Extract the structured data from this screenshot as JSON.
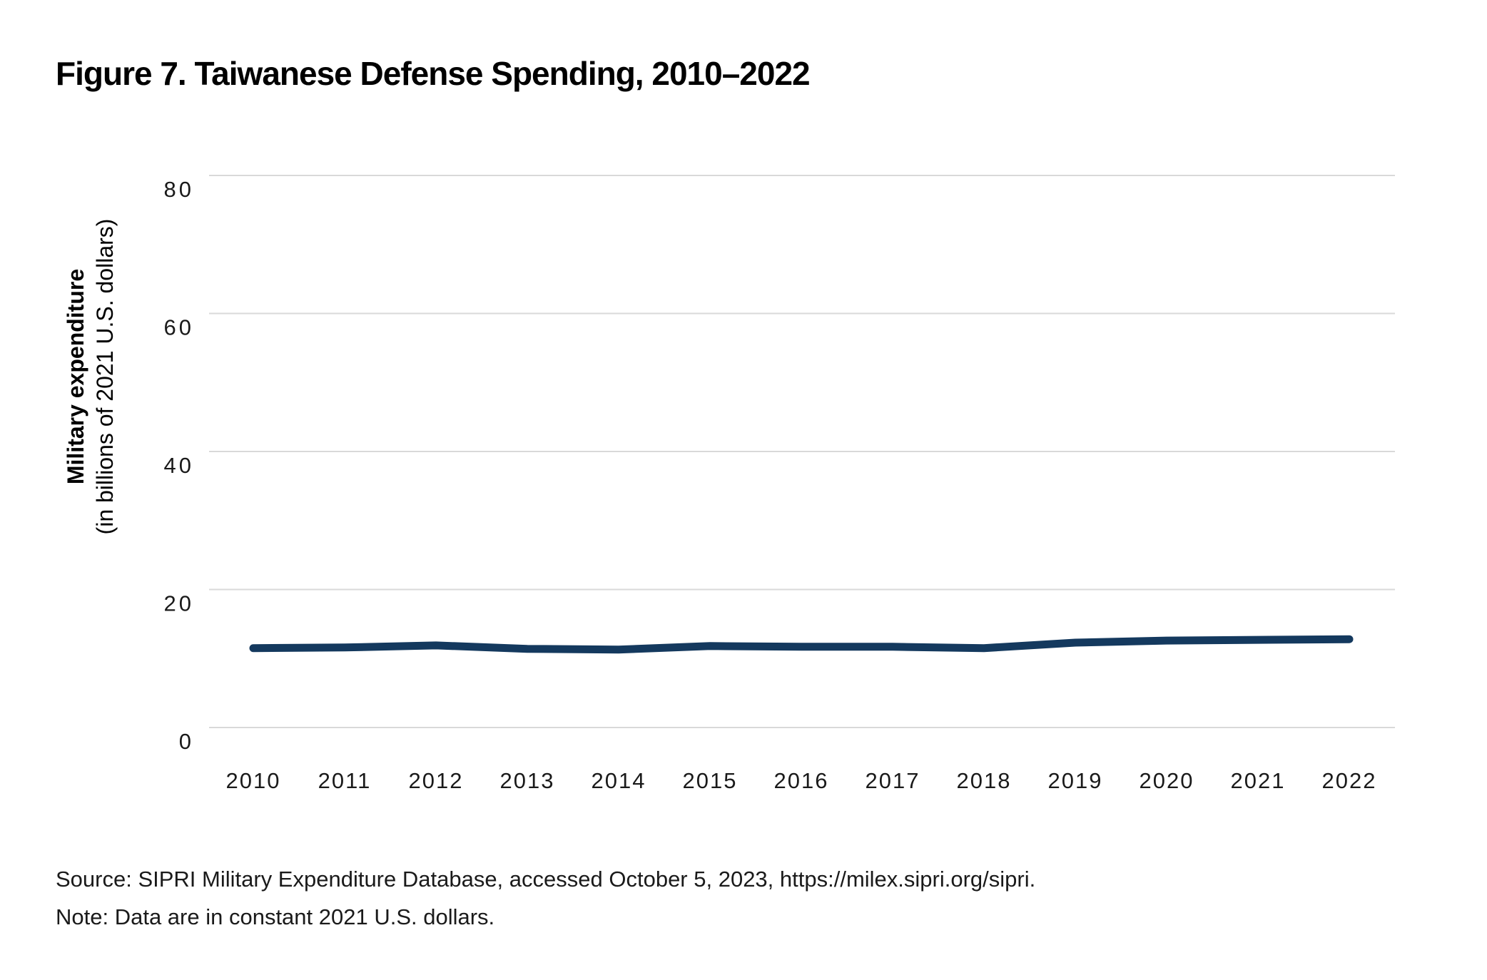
{
  "title": "Figure 7. Taiwanese Defense Spending, 2010–2022",
  "source": "Source: SIPRI Military Expenditure Database, accessed October 5, 2023, https://milex.sipri.org/sipri.",
  "note": "Note: Data are in constant 2021 U.S. dollars.",
  "chart_data": {
    "type": "line",
    "title": "Figure 7. Taiwanese Defense Spending, 2010–2022",
    "x": [
      2010,
      2011,
      2012,
      2013,
      2014,
      2015,
      2016,
      2017,
      2018,
      2019,
      2020,
      2021,
      2022
    ],
    "series": [
      {
        "name": "Taiwanese defense spending",
        "values": [
          11.5,
          11.6,
          11.9,
          11.4,
          11.3,
          11.8,
          11.7,
          11.7,
          11.5,
          12.3,
          12.6,
          12.7,
          12.8
        ]
      }
    ],
    "xlabel": "",
    "ylabel": "Military expenditure",
    "ylabel_sub": "(in billions of 2021 U.S. dollars)",
    "ylim": [
      0,
      80
    ],
    "yticks": [
      0,
      20,
      40,
      60,
      80
    ],
    "grid": "horizontal",
    "legend": "none",
    "colors": {
      "line": "#14395e",
      "grid": "#d9d9d9",
      "text": "#1a1a1a",
      "title": "#000000",
      "background": "#ffffff"
    },
    "line_width": 11
  }
}
